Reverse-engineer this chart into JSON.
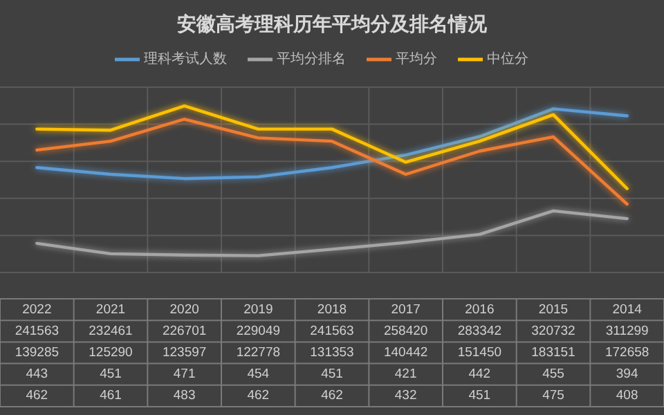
{
  "chart_data": {
    "type": "line",
    "title": "安徽高考理科历年平均分及排名情况",
    "categories": [
      "2022",
      "2021",
      "2020",
      "2019",
      "2018",
      "2017",
      "2016",
      "2015",
      "2014"
    ],
    "series": [
      {
        "name": "理科考试人数",
        "color": "#5b9bd5",
        "values": [
          241563,
          232461,
          226701,
          229049,
          241563,
          258420,
          283342,
          320732,
          311299
        ]
      },
      {
        "name": "平均分排名",
        "color": "#a5a5a5",
        "values": [
          139285,
          125290,
          123597,
          122778,
          131353,
          140442,
          151450,
          183151,
          172658
        ]
      },
      {
        "name": "平均分",
        "color": "#ed7d31",
        "axis": "y2",
        "values": [
          443,
          451,
          471,
          454,
          451,
          421,
          442,
          455,
          394
        ]
      },
      {
        "name": "中位分",
        "color": "#ffc000",
        "axis": "y2",
        "values": [
          462,
          461,
          483,
          462,
          462,
          432,
          451,
          475,
          408
        ]
      }
    ],
    "ylim": [
      100000,
      350000
    ],
    "yticks": [
      {
        "value": 100000,
        "label": null
      },
      {
        "value": 150000,
        "label": null
      },
      {
        "value": 200000,
        "label": null
      },
      {
        "value": 250000,
        "label": null
      },
      {
        "value": 300000,
        "label": null
      },
      {
        "value": 350000,
        "label": null
      }
    ],
    "y2lim": [
      332,
      500
    ],
    "grid": true,
    "legend": "top",
    "data_labels": true,
    "tick_labels": "x",
    "marker": "none",
    "line_style": "solid"
  }
}
